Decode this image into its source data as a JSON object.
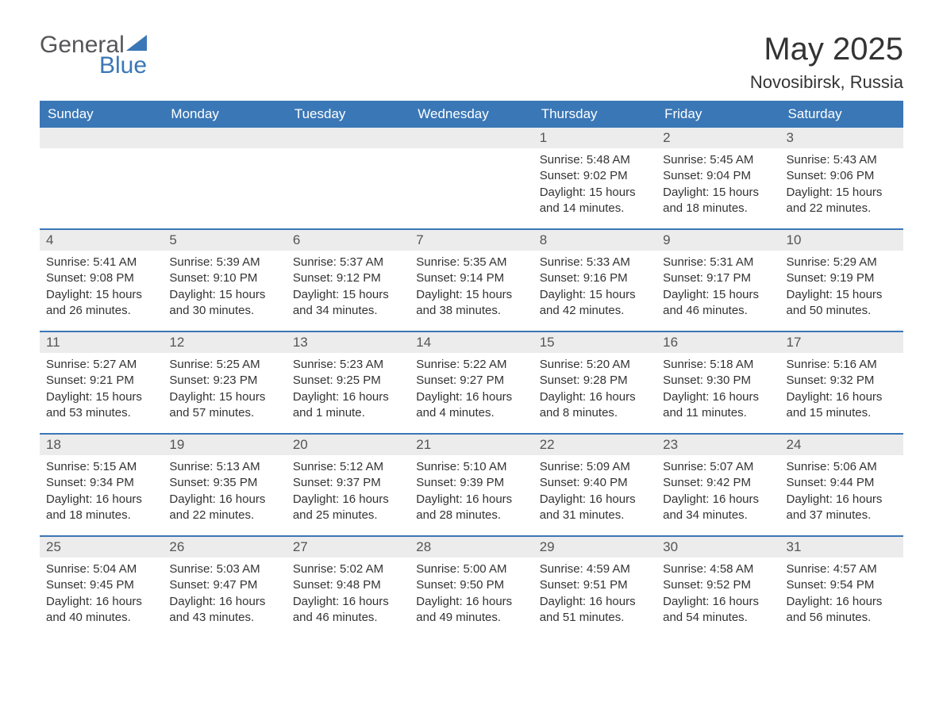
{
  "logo": {
    "word1": "General",
    "word2": "Blue"
  },
  "title": "May 2025",
  "location": "Novosibirsk, Russia",
  "colors": {
    "header_bg": "#3a77b6",
    "header_text": "#ffffff",
    "daynum_bg": "#ececec",
    "text": "#333333",
    "logo_gray": "#56565a",
    "logo_blue": "#3a77b6"
  },
  "day_headers": [
    "Sunday",
    "Monday",
    "Tuesday",
    "Wednesday",
    "Thursday",
    "Friday",
    "Saturday"
  ],
  "labels": {
    "sunrise": "Sunrise:",
    "sunset": "Sunset:",
    "daylight": "Daylight:"
  },
  "weeks": [
    [
      null,
      null,
      null,
      null,
      {
        "n": "1",
        "sunrise": "5:48 AM",
        "sunset": "9:02 PM",
        "daylight": "15 hours and 14 minutes."
      },
      {
        "n": "2",
        "sunrise": "5:45 AM",
        "sunset": "9:04 PM",
        "daylight": "15 hours and 18 minutes."
      },
      {
        "n": "3",
        "sunrise": "5:43 AM",
        "sunset": "9:06 PM",
        "daylight": "15 hours and 22 minutes."
      }
    ],
    [
      {
        "n": "4",
        "sunrise": "5:41 AM",
        "sunset": "9:08 PM",
        "daylight": "15 hours and 26 minutes."
      },
      {
        "n": "5",
        "sunrise": "5:39 AM",
        "sunset": "9:10 PM",
        "daylight": "15 hours and 30 minutes."
      },
      {
        "n": "6",
        "sunrise": "5:37 AM",
        "sunset": "9:12 PM",
        "daylight": "15 hours and 34 minutes."
      },
      {
        "n": "7",
        "sunrise": "5:35 AM",
        "sunset": "9:14 PM",
        "daylight": "15 hours and 38 minutes."
      },
      {
        "n": "8",
        "sunrise": "5:33 AM",
        "sunset": "9:16 PM",
        "daylight": "15 hours and 42 minutes."
      },
      {
        "n": "9",
        "sunrise": "5:31 AM",
        "sunset": "9:17 PM",
        "daylight": "15 hours and 46 minutes."
      },
      {
        "n": "10",
        "sunrise": "5:29 AM",
        "sunset": "9:19 PM",
        "daylight": "15 hours and 50 minutes."
      }
    ],
    [
      {
        "n": "11",
        "sunrise": "5:27 AM",
        "sunset": "9:21 PM",
        "daylight": "15 hours and 53 minutes."
      },
      {
        "n": "12",
        "sunrise": "5:25 AM",
        "sunset": "9:23 PM",
        "daylight": "15 hours and 57 minutes."
      },
      {
        "n": "13",
        "sunrise": "5:23 AM",
        "sunset": "9:25 PM",
        "daylight": "16 hours and 1 minute."
      },
      {
        "n": "14",
        "sunrise": "5:22 AM",
        "sunset": "9:27 PM",
        "daylight": "16 hours and 4 minutes."
      },
      {
        "n": "15",
        "sunrise": "5:20 AM",
        "sunset": "9:28 PM",
        "daylight": "16 hours and 8 minutes."
      },
      {
        "n": "16",
        "sunrise": "5:18 AM",
        "sunset": "9:30 PM",
        "daylight": "16 hours and 11 minutes."
      },
      {
        "n": "17",
        "sunrise": "5:16 AM",
        "sunset": "9:32 PM",
        "daylight": "16 hours and 15 minutes."
      }
    ],
    [
      {
        "n": "18",
        "sunrise": "5:15 AM",
        "sunset": "9:34 PM",
        "daylight": "16 hours and 18 minutes."
      },
      {
        "n": "19",
        "sunrise": "5:13 AM",
        "sunset": "9:35 PM",
        "daylight": "16 hours and 22 minutes."
      },
      {
        "n": "20",
        "sunrise": "5:12 AM",
        "sunset": "9:37 PM",
        "daylight": "16 hours and 25 minutes."
      },
      {
        "n": "21",
        "sunrise": "5:10 AM",
        "sunset": "9:39 PM",
        "daylight": "16 hours and 28 minutes."
      },
      {
        "n": "22",
        "sunrise": "5:09 AM",
        "sunset": "9:40 PM",
        "daylight": "16 hours and 31 minutes."
      },
      {
        "n": "23",
        "sunrise": "5:07 AM",
        "sunset": "9:42 PM",
        "daylight": "16 hours and 34 minutes."
      },
      {
        "n": "24",
        "sunrise": "5:06 AM",
        "sunset": "9:44 PM",
        "daylight": "16 hours and 37 minutes."
      }
    ],
    [
      {
        "n": "25",
        "sunrise": "5:04 AM",
        "sunset": "9:45 PM",
        "daylight": "16 hours and 40 minutes."
      },
      {
        "n": "26",
        "sunrise": "5:03 AM",
        "sunset": "9:47 PM",
        "daylight": "16 hours and 43 minutes."
      },
      {
        "n": "27",
        "sunrise": "5:02 AM",
        "sunset": "9:48 PM",
        "daylight": "16 hours and 46 minutes."
      },
      {
        "n": "28",
        "sunrise": "5:00 AM",
        "sunset": "9:50 PM",
        "daylight": "16 hours and 49 minutes."
      },
      {
        "n": "29",
        "sunrise": "4:59 AM",
        "sunset": "9:51 PM",
        "daylight": "16 hours and 51 minutes."
      },
      {
        "n": "30",
        "sunrise": "4:58 AM",
        "sunset": "9:52 PM",
        "daylight": "16 hours and 54 minutes."
      },
      {
        "n": "31",
        "sunrise": "4:57 AM",
        "sunset": "9:54 PM",
        "daylight": "16 hours and 56 minutes."
      }
    ]
  ]
}
